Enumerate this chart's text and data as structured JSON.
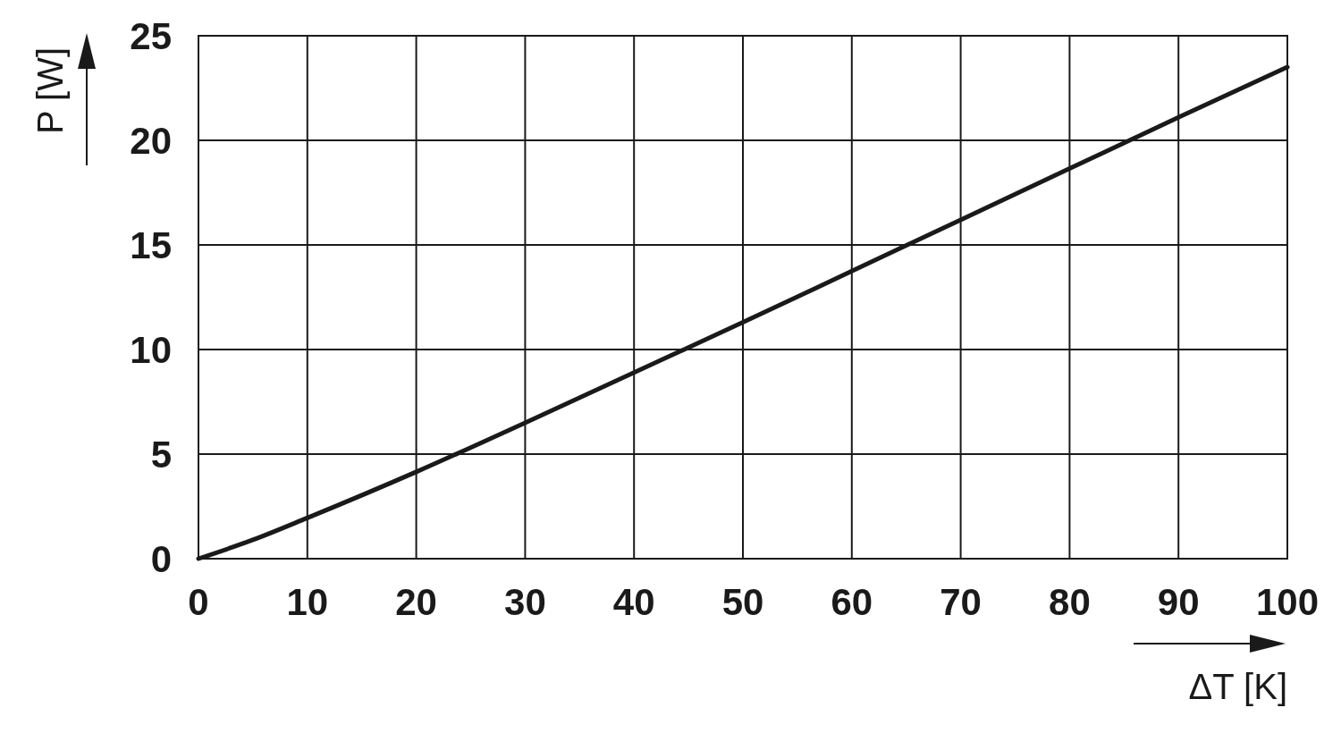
{
  "chart_data": {
    "type": "line",
    "xlabel": "ΔT [K]",
    "ylabel": "P [W]",
    "x": [
      0,
      5,
      10,
      20,
      30,
      40,
      50,
      60,
      70,
      80,
      90,
      100
    ],
    "series": [
      {
        "color": "#1a1a1a",
        "values": [
          0,
          0.9,
          1.95,
          4.15,
          6.5,
          8.9,
          11.3,
          13.75,
          16.2,
          18.65,
          21.1,
          23.5
        ]
      }
    ],
    "xlim": [
      0,
      100
    ],
    "ylim": [
      0,
      25
    ],
    "xticks": [
      0,
      10,
      20,
      30,
      40,
      50,
      60,
      70,
      80,
      90,
      100
    ],
    "yticks": [
      0,
      5,
      10,
      15,
      20,
      25
    ],
    "grid": true,
    "marker": "none",
    "line_style": "solid"
  }
}
